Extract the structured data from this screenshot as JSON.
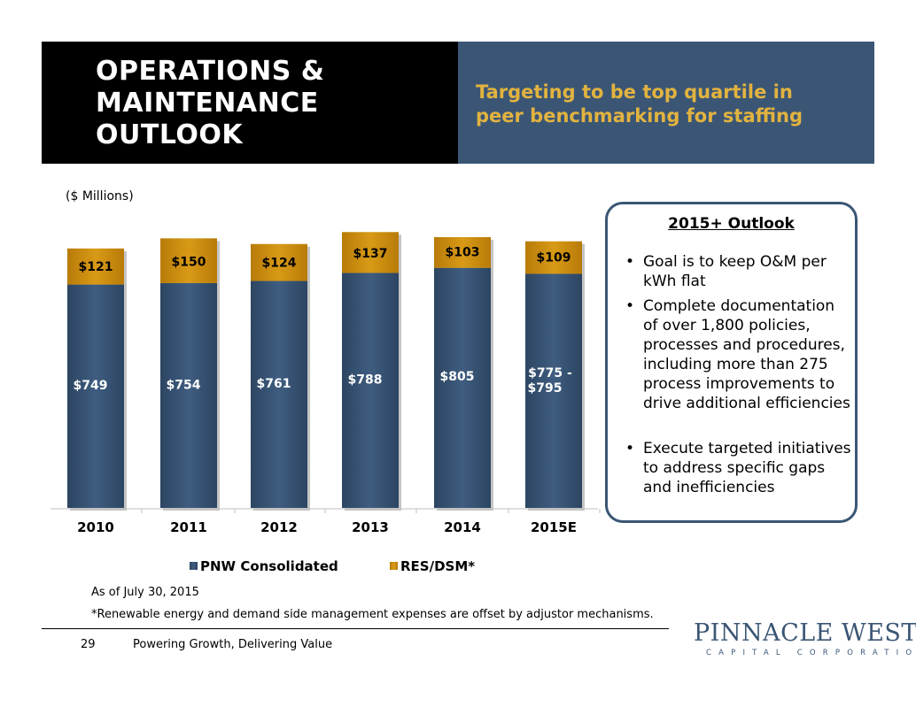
{
  "header": {
    "title_lines": [
      "OPERATIONS &",
      "MAINTENANCE",
      "OUTLOOK"
    ],
    "subtitle_lines": [
      "Targeting to be top quartile in",
      "peer benchmarking for staffing"
    ]
  },
  "units_label": "($ Millions)",
  "chart_data": {
    "type": "bar",
    "stacked": true,
    "categories": [
      "2010",
      "2011",
      "2012",
      "2013",
      "2014",
      "2015E"
    ],
    "series": [
      {
        "name": "PNW Consolidated",
        "values": [
          749,
          754,
          761,
          788,
          805,
          785
        ],
        "labels": [
          "$749",
          "$754",
          "$761",
          "$788",
          "$805",
          "$775 - $795"
        ],
        "color": "#3b5675"
      },
      {
        "name": "RES/DSM*",
        "values": [
          121,
          150,
          124,
          137,
          103,
          109
        ],
        "labels": [
          "$121",
          "$150",
          "$124",
          "$137",
          "$103",
          "$109"
        ],
        "color": "#d08f0e"
      }
    ],
    "legend_position": "bottom",
    "ylim": [
      0,
      1000
    ],
    "grid": false
  },
  "outlook": {
    "title": "2015+ Outlook",
    "bullets": [
      "Goal is to keep O&M per kWh flat",
      "Complete documentation of over 1,800 policies, processes and procedures, including more than 275 process improvements to drive additional efficiencies",
      "Execute targeted initiatives to address specific gaps and inefficiencies"
    ]
  },
  "notes": {
    "as_of": "As of July 30, 2015",
    "footnote": "*Renewable energy and demand side management expenses are offset by adjustor mechanisms."
  },
  "footer": {
    "page_number": "29",
    "tagline": "Powering Growth, Delivering Value",
    "logo_main": "PINNACLE WEST",
    "logo_sub": "CAPITAL CORPORATION"
  },
  "colors": {
    "header_dark": "#000000",
    "header_blue": "#3b5675",
    "subtitle_gold": "#e2b33f",
    "bar_blue": "#3b5675",
    "bar_gold": "#d08f0e"
  }
}
